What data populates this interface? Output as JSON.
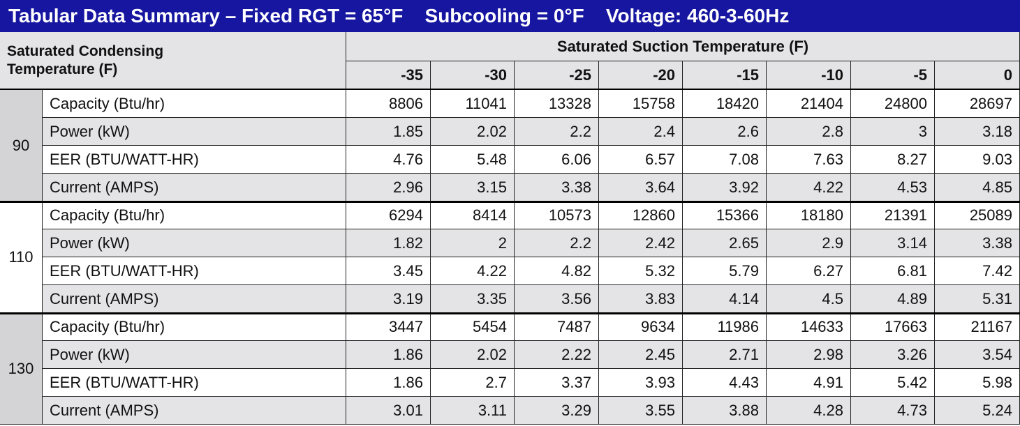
{
  "title": "Tabular Data Summary – Fixed RGT = 65°F    Subcooling = 0°F    Voltage: 460-3-60Hz",
  "table": {
    "row_header": "Saturated Condensing Temperature (F)",
    "column_group": "Saturated Suction Temperature (F)",
    "columns": [
      "-35",
      "-30",
      "-25",
      "-20",
      "-15",
      "-10",
      "-5",
      "0"
    ],
    "groups": [
      {
        "temperature": "90",
        "rows": [
          {
            "label": "Capacity (Btu/hr)",
            "values": [
              "8806",
              "11041",
              "13328",
              "15758",
              "18420",
              "21404",
              "24800",
              "28697"
            ]
          },
          {
            "label": "Power (kW)",
            "values": [
              "1.85",
              "2.02",
              "2.2",
              "2.4",
              "2.6",
              "2.8",
              "3",
              "3.18"
            ]
          },
          {
            "label": "EER (BTU/WATT-HR)",
            "values": [
              "4.76",
              "5.48",
              "6.06",
              "6.57",
              "7.08",
              "7.63",
              "8.27",
              "9.03"
            ]
          },
          {
            "label": "Current (AMPS)",
            "values": [
              "2.96",
              "3.15",
              "3.38",
              "3.64",
              "3.92",
              "4.22",
              "4.53",
              "4.85"
            ]
          }
        ]
      },
      {
        "temperature": "110",
        "rows": [
          {
            "label": "Capacity (Btu/hr)",
            "values": [
              "6294",
              "8414",
              "10573",
              "12860",
              "15366",
              "18180",
              "21391",
              "25089"
            ]
          },
          {
            "label": "Power (kW)",
            "values": [
              "1.82",
              "2",
              "2.2",
              "2.42",
              "2.65",
              "2.9",
              "3.14",
              "3.38"
            ]
          },
          {
            "label": "EER (BTU/WATT-HR)",
            "values": [
              "3.45",
              "4.22",
              "4.82",
              "5.32",
              "5.79",
              "6.27",
              "6.81",
              "7.42"
            ]
          },
          {
            "label": "Current (AMPS)",
            "values": [
              "3.19",
              "3.35",
              "3.56",
              "3.83",
              "4.14",
              "4.5",
              "4.89",
              "5.31"
            ]
          }
        ]
      },
      {
        "temperature": "130",
        "rows": [
          {
            "label": "Capacity (Btu/hr)",
            "values": [
              "3447",
              "5454",
              "7487",
              "9634",
              "11986",
              "14633",
              "17663",
              "21167"
            ]
          },
          {
            "label": "Power (kW)",
            "values": [
              "1.86",
              "2.02",
              "2.22",
              "2.45",
              "2.71",
              "2.98",
              "3.26",
              "3.54"
            ]
          },
          {
            "label": "EER (BTU/WATT-HR)",
            "values": [
              "1.86",
              "2.7",
              "3.37",
              "3.93",
              "4.43",
              "4.91",
              "5.42",
              "5.98"
            ]
          },
          {
            "label": "Current (AMPS)",
            "values": [
              "3.01",
              "3.11",
              "3.29",
              "3.55",
              "3.88",
              "4.28",
              "4.73",
              "5.24"
            ]
          }
        ]
      }
    ]
  }
}
